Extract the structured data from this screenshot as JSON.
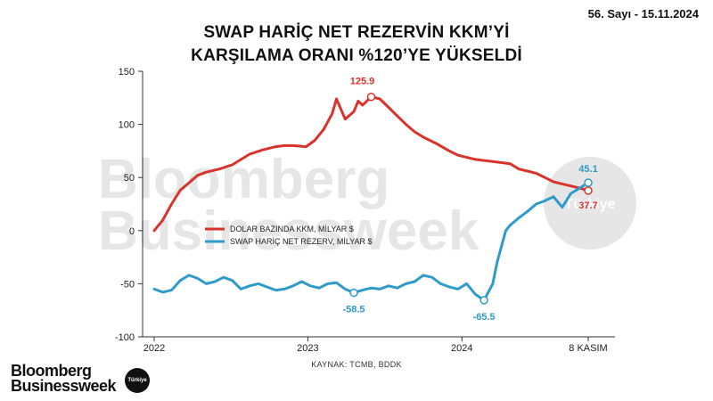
{
  "issue": "56. Sayı - 15.11.2024",
  "title_lines": [
    "SWAP HARİÇ NET REZERVİN KKM’Yİ",
    "KARŞILAMA ORANI %120’YE YÜKSELDİ"
  ],
  "source": "KAYNAK: TCMB, BDDK",
  "watermark": {
    "line1": "Bloomberg",
    "line2": "Businessweek",
    "badge": "Türkiye"
  },
  "brand": {
    "line1": "Bloomberg",
    "line2": "Businessweek",
    "badge": "Türkiye"
  },
  "colors": {
    "kkm": "#d9342b",
    "reserve": "#2e9bc9",
    "axis": "#333333",
    "watermark": "#e6e6e6"
  },
  "chart_data": {
    "type": "line",
    "title": "SWAP HARİÇ NET REZERVİN KKM’Yİ KARŞILAMA ORANI %120’YE YÜKSELDİ",
    "ylim": [
      -100,
      150
    ],
    "yticks": [
      -100,
      -50,
      0,
      50,
      100,
      150
    ],
    "xlim": [
      0,
      1
    ],
    "xticks": [
      {
        "x": 0.0,
        "label": "2022"
      },
      {
        "x": 0.354,
        "label": "2023"
      },
      {
        "x": 0.709,
        "label": "2024"
      },
      {
        "x": 1.0,
        "label": "8 KASIM"
      }
    ],
    "grid": false,
    "legend": "center-left",
    "series": [
      {
        "name": "DOLAR BAZINDA KKM, MİLYAR $",
        "color": "#d9342b",
        "x": [
          0.0,
          0.02,
          0.04,
          0.06,
          0.08,
          0.1,
          0.12,
          0.15,
          0.18,
          0.2,
          0.22,
          0.25,
          0.28,
          0.3,
          0.32,
          0.35,
          0.37,
          0.39,
          0.41,
          0.42,
          0.44,
          0.46,
          0.47,
          0.48,
          0.5,
          0.52,
          0.54,
          0.56,
          0.58,
          0.6,
          0.62,
          0.65,
          0.68,
          0.7,
          0.72,
          0.74,
          0.76,
          0.78,
          0.8,
          0.82,
          0.84,
          0.86,
          0.88,
          0.9,
          0.92,
          0.94,
          0.96,
          0.98,
          1.0
        ],
        "values": [
          0,
          10,
          25,
          38,
          45,
          52,
          55,
          58,
          62,
          67,
          72,
          76,
          79,
          80,
          80,
          79,
          85,
          95,
          110,
          124,
          105,
          112,
          122,
          118,
          126,
          124,
          116,
          108,
          100,
          93,
          88,
          82,
          75,
          71,
          69,
          67,
          66,
          65,
          64,
          63,
          58,
          56,
          54,
          50,
          46,
          44,
          42,
          40,
          37.7
        ]
      },
      {
        "name": "SWAP HARİÇ NET REZERV, MİLYAR $",
        "color": "#2e9bc9",
        "x": [
          0.0,
          0.02,
          0.04,
          0.06,
          0.08,
          0.1,
          0.12,
          0.14,
          0.16,
          0.18,
          0.2,
          0.22,
          0.24,
          0.26,
          0.28,
          0.3,
          0.32,
          0.34,
          0.36,
          0.38,
          0.4,
          0.42,
          0.44,
          0.46,
          0.48,
          0.5,
          0.52,
          0.54,
          0.56,
          0.58,
          0.6,
          0.62,
          0.64,
          0.66,
          0.68,
          0.7,
          0.72,
          0.74,
          0.76,
          0.78,
          0.79,
          0.8,
          0.81,
          0.82,
          0.84,
          0.86,
          0.88,
          0.9,
          0.92,
          0.94,
          0.96,
          0.98,
          1.0
        ],
        "values": [
          -55,
          -58,
          -56,
          -47,
          -42,
          -45,
          -50,
          -48,
          -44,
          -47,
          -55,
          -52,
          -50,
          -53,
          -56,
          -55,
          -52,
          -48,
          -52,
          -54,
          -50,
          -49,
          -55,
          -58.5,
          -56,
          -54,
          -55,
          -52,
          -54,
          -50,
          -48,
          -42,
          -44,
          -50,
          -53,
          -55,
          -50,
          -60,
          -65.5,
          -50,
          -30,
          -15,
          0,
          5,
          12,
          18,
          25,
          28,
          32,
          22,
          35,
          40,
          45.1
        ]
      }
    ],
    "annotations": [
      {
        "series": 0,
        "x": 0.5,
        "value": 125.9,
        "label": "125.9"
      },
      {
        "series": 1,
        "x": 0.46,
        "value": -58.5,
        "label": "-58.5"
      },
      {
        "series": 1,
        "x": 0.76,
        "value": -65.5,
        "label": "-65.5"
      },
      {
        "series": 1,
        "x": 1.0,
        "value": 45.1,
        "label": "45.1"
      },
      {
        "series": 0,
        "x": 1.0,
        "value": 37.7,
        "label": "37.7"
      }
    ]
  }
}
